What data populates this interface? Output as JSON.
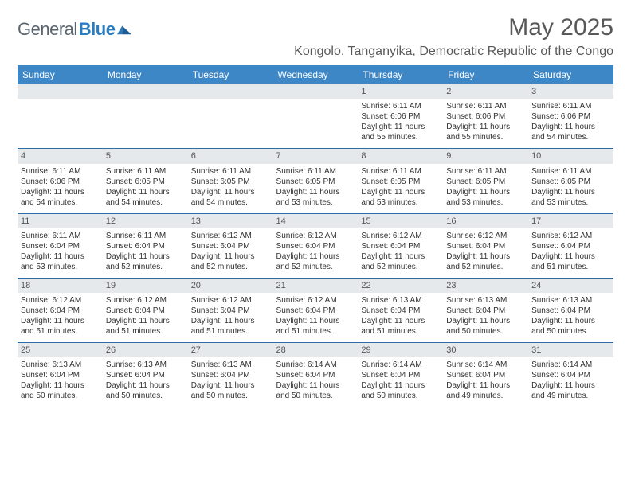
{
  "logo": {
    "text1": "General",
    "text2": "Blue"
  },
  "header": {
    "month_title": "May 2025",
    "location": "Kongolo, Tanganyika, Democratic Republic of the Congo"
  },
  "colors": {
    "header_bg": "#3d87c7",
    "header_text": "#ffffff",
    "daybar_bg": "#e6e9ec",
    "row_border": "#2f6da8",
    "title_color": "#595959",
    "body_text": "#333333"
  },
  "weekdays": [
    "Sunday",
    "Monday",
    "Tuesday",
    "Wednesday",
    "Thursday",
    "Friday",
    "Saturday"
  ],
  "weeks": [
    [
      {
        "day": "",
        "sunrise": "",
        "sunset": "",
        "daylight": ""
      },
      {
        "day": "",
        "sunrise": "",
        "sunset": "",
        "daylight": ""
      },
      {
        "day": "",
        "sunrise": "",
        "sunset": "",
        "daylight": ""
      },
      {
        "day": "",
        "sunrise": "",
        "sunset": "",
        "daylight": ""
      },
      {
        "day": "1",
        "sunrise": "Sunrise: 6:11 AM",
        "sunset": "Sunset: 6:06 PM",
        "daylight": "Daylight: 11 hours and 55 minutes."
      },
      {
        "day": "2",
        "sunrise": "Sunrise: 6:11 AM",
        "sunset": "Sunset: 6:06 PM",
        "daylight": "Daylight: 11 hours and 55 minutes."
      },
      {
        "day": "3",
        "sunrise": "Sunrise: 6:11 AM",
        "sunset": "Sunset: 6:06 PM",
        "daylight": "Daylight: 11 hours and 54 minutes."
      }
    ],
    [
      {
        "day": "4",
        "sunrise": "Sunrise: 6:11 AM",
        "sunset": "Sunset: 6:06 PM",
        "daylight": "Daylight: 11 hours and 54 minutes."
      },
      {
        "day": "5",
        "sunrise": "Sunrise: 6:11 AM",
        "sunset": "Sunset: 6:05 PM",
        "daylight": "Daylight: 11 hours and 54 minutes."
      },
      {
        "day": "6",
        "sunrise": "Sunrise: 6:11 AM",
        "sunset": "Sunset: 6:05 PM",
        "daylight": "Daylight: 11 hours and 54 minutes."
      },
      {
        "day": "7",
        "sunrise": "Sunrise: 6:11 AM",
        "sunset": "Sunset: 6:05 PM",
        "daylight": "Daylight: 11 hours and 53 minutes."
      },
      {
        "day": "8",
        "sunrise": "Sunrise: 6:11 AM",
        "sunset": "Sunset: 6:05 PM",
        "daylight": "Daylight: 11 hours and 53 minutes."
      },
      {
        "day": "9",
        "sunrise": "Sunrise: 6:11 AM",
        "sunset": "Sunset: 6:05 PM",
        "daylight": "Daylight: 11 hours and 53 minutes."
      },
      {
        "day": "10",
        "sunrise": "Sunrise: 6:11 AM",
        "sunset": "Sunset: 6:05 PM",
        "daylight": "Daylight: 11 hours and 53 minutes."
      }
    ],
    [
      {
        "day": "11",
        "sunrise": "Sunrise: 6:11 AM",
        "sunset": "Sunset: 6:04 PM",
        "daylight": "Daylight: 11 hours and 53 minutes."
      },
      {
        "day": "12",
        "sunrise": "Sunrise: 6:11 AM",
        "sunset": "Sunset: 6:04 PM",
        "daylight": "Daylight: 11 hours and 52 minutes."
      },
      {
        "day": "13",
        "sunrise": "Sunrise: 6:12 AM",
        "sunset": "Sunset: 6:04 PM",
        "daylight": "Daylight: 11 hours and 52 minutes."
      },
      {
        "day": "14",
        "sunrise": "Sunrise: 6:12 AM",
        "sunset": "Sunset: 6:04 PM",
        "daylight": "Daylight: 11 hours and 52 minutes."
      },
      {
        "day": "15",
        "sunrise": "Sunrise: 6:12 AM",
        "sunset": "Sunset: 6:04 PM",
        "daylight": "Daylight: 11 hours and 52 minutes."
      },
      {
        "day": "16",
        "sunrise": "Sunrise: 6:12 AM",
        "sunset": "Sunset: 6:04 PM",
        "daylight": "Daylight: 11 hours and 52 minutes."
      },
      {
        "day": "17",
        "sunrise": "Sunrise: 6:12 AM",
        "sunset": "Sunset: 6:04 PM",
        "daylight": "Daylight: 11 hours and 51 minutes."
      }
    ],
    [
      {
        "day": "18",
        "sunrise": "Sunrise: 6:12 AM",
        "sunset": "Sunset: 6:04 PM",
        "daylight": "Daylight: 11 hours and 51 minutes."
      },
      {
        "day": "19",
        "sunrise": "Sunrise: 6:12 AM",
        "sunset": "Sunset: 6:04 PM",
        "daylight": "Daylight: 11 hours and 51 minutes."
      },
      {
        "day": "20",
        "sunrise": "Sunrise: 6:12 AM",
        "sunset": "Sunset: 6:04 PM",
        "daylight": "Daylight: 11 hours and 51 minutes."
      },
      {
        "day": "21",
        "sunrise": "Sunrise: 6:12 AM",
        "sunset": "Sunset: 6:04 PM",
        "daylight": "Daylight: 11 hours and 51 minutes."
      },
      {
        "day": "22",
        "sunrise": "Sunrise: 6:13 AM",
        "sunset": "Sunset: 6:04 PM",
        "daylight": "Daylight: 11 hours and 51 minutes."
      },
      {
        "day": "23",
        "sunrise": "Sunrise: 6:13 AM",
        "sunset": "Sunset: 6:04 PM",
        "daylight": "Daylight: 11 hours and 50 minutes."
      },
      {
        "day": "24",
        "sunrise": "Sunrise: 6:13 AM",
        "sunset": "Sunset: 6:04 PM",
        "daylight": "Daylight: 11 hours and 50 minutes."
      }
    ],
    [
      {
        "day": "25",
        "sunrise": "Sunrise: 6:13 AM",
        "sunset": "Sunset: 6:04 PM",
        "daylight": "Daylight: 11 hours and 50 minutes."
      },
      {
        "day": "26",
        "sunrise": "Sunrise: 6:13 AM",
        "sunset": "Sunset: 6:04 PM",
        "daylight": "Daylight: 11 hours and 50 minutes."
      },
      {
        "day": "27",
        "sunrise": "Sunrise: 6:13 AM",
        "sunset": "Sunset: 6:04 PM",
        "daylight": "Daylight: 11 hours and 50 minutes."
      },
      {
        "day": "28",
        "sunrise": "Sunrise: 6:14 AM",
        "sunset": "Sunset: 6:04 PM",
        "daylight": "Daylight: 11 hours and 50 minutes."
      },
      {
        "day": "29",
        "sunrise": "Sunrise: 6:14 AM",
        "sunset": "Sunset: 6:04 PM",
        "daylight": "Daylight: 11 hours and 50 minutes."
      },
      {
        "day": "30",
        "sunrise": "Sunrise: 6:14 AM",
        "sunset": "Sunset: 6:04 PM",
        "daylight": "Daylight: 11 hours and 49 minutes."
      },
      {
        "day": "31",
        "sunrise": "Sunrise: 6:14 AM",
        "sunset": "Sunset: 6:04 PM",
        "daylight": "Daylight: 11 hours and 49 minutes."
      }
    ]
  ]
}
